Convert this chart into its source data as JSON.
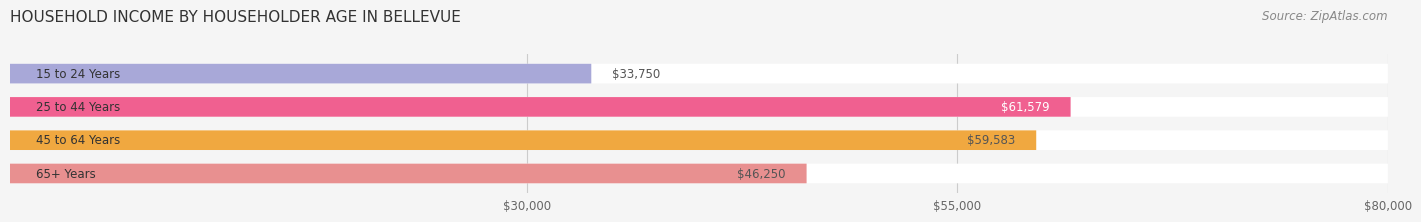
{
  "title": "HOUSEHOLD INCOME BY HOUSEHOLDER AGE IN BELLEVUE",
  "source": "Source: ZipAtlas.com",
  "categories": [
    "15 to 24 Years",
    "25 to 44 Years",
    "45 to 64 Years",
    "65+ Years"
  ],
  "values": [
    33750,
    61579,
    59583,
    46250
  ],
  "bar_colors": [
    "#a8a8d8",
    "#f06090",
    "#f0a840",
    "#e89090"
  ],
  "label_colors": [
    "#555555",
    "#ffffff",
    "#555555",
    "#555555"
  ],
  "x_min": 0,
  "x_max": 80000,
  "x_ticks": [
    30000,
    55000,
    80000
  ],
  "x_tick_labels": [
    "$30,000",
    "$55,000",
    "$80,000"
  ],
  "background_color": "#f5f5f5",
  "title_fontsize": 11,
  "source_fontsize": 8.5,
  "label_fontsize": 8.5,
  "category_fontsize": 8.5,
  "tick_fontsize": 8.5
}
